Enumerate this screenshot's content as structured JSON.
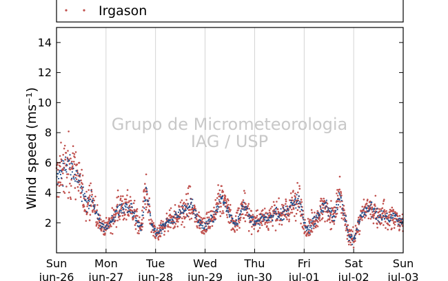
{
  "chart_data": {
    "type": "scatter",
    "title": "",
    "xlabel": "",
    "ylabel": "Wind speed (ms⁻¹)",
    "ylim": [
      0,
      15
    ],
    "yticks": [
      2,
      4,
      6,
      8,
      10,
      12,
      14
    ],
    "xlim": [
      0,
      7
    ],
    "x_units": "days from Sun jun-26 00:00",
    "xticks": [
      {
        "day": "Sun",
        "date": "jun-26"
      },
      {
        "day": "Mon",
        "date": "jun-27"
      },
      {
        "day": "Tue",
        "date": "jun-28"
      },
      {
        "day": "Wed",
        "date": "jun-29"
      },
      {
        "day": "Thu",
        "date": "jun-30"
      },
      {
        "day": "Fri",
        "date": "jul-01"
      },
      {
        "day": "Sat",
        "date": "jul-02"
      },
      {
        "day": "Sun",
        "date": "jul-03"
      }
    ],
    "grid": "vertical",
    "legend": {
      "placement": "top",
      "entry": "Irgason"
    },
    "watermark": [
      "Grupo de Micrometeorologia",
      "IAG / USP"
    ],
    "series": [
      {
        "name": "Irgason",
        "color": "#c0504d",
        "marker": "dot",
        "role": "scattered points"
      },
      {
        "name": "",
        "color": "#1f4e8c",
        "marker": "dot",
        "role": "dense points"
      }
    ],
    "profile_mean": [
      {
        "x": 0.0,
        "y": 4.8
      },
      {
        "x": 0.12,
        "y": 5.6
      },
      {
        "x": 0.25,
        "y": 5.8
      },
      {
        "x": 0.4,
        "y": 5.3
      },
      {
        "x": 0.5,
        "y": 4.2
      },
      {
        "x": 0.6,
        "y": 3.3
      },
      {
        "x": 0.7,
        "y": 3.6
      },
      {
        "x": 0.8,
        "y": 2.6
      },
      {
        "x": 0.9,
        "y": 1.8
      },
      {
        "x": 1.0,
        "y": 1.7
      },
      {
        "x": 1.1,
        "y": 2.0
      },
      {
        "x": 1.2,
        "y": 2.8
      },
      {
        "x": 1.3,
        "y": 3.0
      },
      {
        "x": 1.4,
        "y": 3.0
      },
      {
        "x": 1.5,
        "y": 3.0
      },
      {
        "x": 1.6,
        "y": 2.3
      },
      {
        "x": 1.7,
        "y": 1.5
      },
      {
        "x": 1.8,
        "y": 4.2
      },
      {
        "x": 1.9,
        "y": 2.0
      },
      {
        "x": 2.0,
        "y": 1.2
      },
      {
        "x": 2.1,
        "y": 1.5
      },
      {
        "x": 2.2,
        "y": 2.0
      },
      {
        "x": 2.3,
        "y": 2.2
      },
      {
        "x": 2.4,
        "y": 2.4
      },
      {
        "x": 2.5,
        "y": 2.7
      },
      {
        "x": 2.6,
        "y": 2.8
      },
      {
        "x": 2.7,
        "y": 3.3
      },
      {
        "x": 2.8,
        "y": 2.5
      },
      {
        "x": 2.9,
        "y": 2.0
      },
      {
        "x": 3.0,
        "y": 1.8
      },
      {
        "x": 3.1,
        "y": 2.2
      },
      {
        "x": 3.2,
        "y": 2.5
      },
      {
        "x": 3.3,
        "y": 3.8
      },
      {
        "x": 3.4,
        "y": 3.4
      },
      {
        "x": 3.5,
        "y": 2.4
      },
      {
        "x": 3.6,
        "y": 1.8
      },
      {
        "x": 3.7,
        "y": 2.6
      },
      {
        "x": 3.8,
        "y": 3.2
      },
      {
        "x": 3.9,
        "y": 2.4
      },
      {
        "x": 4.0,
        "y": 2.0
      },
      {
        "x": 4.1,
        "y": 2.2
      },
      {
        "x": 4.2,
        "y": 2.4
      },
      {
        "x": 4.3,
        "y": 2.3
      },
      {
        "x": 4.4,
        "y": 2.6
      },
      {
        "x": 4.5,
        "y": 2.4
      },
      {
        "x": 4.6,
        "y": 2.8
      },
      {
        "x": 4.7,
        "y": 2.9
      },
      {
        "x": 4.8,
        "y": 3.5
      },
      {
        "x": 4.9,
        "y": 3.4
      },
      {
        "x": 5.0,
        "y": 1.9
      },
      {
        "x": 5.1,
        "y": 1.6
      },
      {
        "x": 5.2,
        "y": 2.2
      },
      {
        "x": 5.3,
        "y": 2.6
      },
      {
        "x": 5.4,
        "y": 3.2
      },
      {
        "x": 5.5,
        "y": 2.8
      },
      {
        "x": 5.6,
        "y": 2.3
      },
      {
        "x": 5.7,
        "y": 3.8
      },
      {
        "x": 5.8,
        "y": 2.6
      },
      {
        "x": 5.9,
        "y": 1.0
      },
      {
        "x": 6.0,
        "y": 0.9
      },
      {
        "x": 6.1,
        "y": 2.0
      },
      {
        "x": 6.2,
        "y": 2.7
      },
      {
        "x": 6.3,
        "y": 3.0
      },
      {
        "x": 6.4,
        "y": 2.9
      },
      {
        "x": 6.5,
        "y": 2.4
      },
      {
        "x": 6.6,
        "y": 2.6
      },
      {
        "x": 6.7,
        "y": 2.2
      },
      {
        "x": 6.8,
        "y": 2.5
      },
      {
        "x": 6.9,
        "y": 2.1
      },
      {
        "x": 7.0,
        "y": 2.0
      }
    ]
  }
}
